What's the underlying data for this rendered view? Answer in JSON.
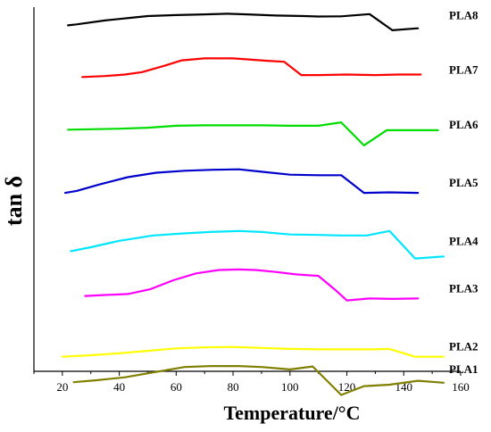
{
  "chart_data": {
    "type": "line",
    "title": "",
    "xlabel": "Temperature/°C",
    "ylabel": "tan δ",
    "xlim": [
      10,
      160
    ],
    "xticks": [
      20,
      40,
      60,
      80,
      100,
      120,
      140,
      160
    ],
    "y_ticks_shown": false,
    "grid": false,
    "legend": "inline-right",
    "series": [
      {
        "name": "PLA8",
        "color": "#000000",
        "baseline": 0.95,
        "x": [
          22,
          25,
          35,
          45,
          50,
          60,
          70,
          78,
          85,
          95,
          105,
          110,
          118,
          128,
          136,
          145
        ],
        "y": [
          0.0,
          0.1,
          0.5,
          0.8,
          0.95,
          1.05,
          1.12,
          1.18,
          1.12,
          1.0,
          0.95,
          0.9,
          0.92,
          1.15,
          -0.5,
          -0.3
        ]
      },
      {
        "name": "PLA7",
        "color": "#ff0000",
        "baseline": 0.8,
        "x": [
          27,
          35,
          42,
          48,
          56,
          62,
          70,
          80,
          85,
          92,
          98,
          104,
          110,
          120,
          130,
          138,
          146
        ],
        "y": [
          0.3,
          0.4,
          0.55,
          0.8,
          1.45,
          2.0,
          2.2,
          2.2,
          2.1,
          1.95,
          1.85,
          0.5,
          0.5,
          0.55,
          0.5,
          0.55,
          0.55
        ]
      },
      {
        "name": "PLA6",
        "color": "#00dd00",
        "baseline": 0.65,
        "x": [
          22,
          30,
          40,
          50,
          60,
          70,
          80,
          90,
          100,
          110,
          118,
          126,
          134,
          140,
          152
        ],
        "y": [
          0.5,
          0.55,
          0.6,
          0.7,
          0.9,
          0.95,
          0.95,
          0.95,
          0.9,
          0.9,
          1.25,
          -1.1,
          0.45,
          0.45,
          0.45
        ]
      },
      {
        "name": "PLA5",
        "color": "#0000cc",
        "baseline": 0.49,
        "x": [
          21,
          25,
          33,
          43,
          53,
          63,
          73,
          82,
          90,
          100,
          110,
          118,
          126,
          135,
          145
        ],
        "y": [
          0.0,
          0.2,
          0.85,
          1.6,
          2.05,
          2.25,
          2.35,
          2.4,
          2.15,
          1.85,
          1.8,
          1.8,
          0.0,
          0.05,
          0.0
        ]
      },
      {
        "name": "PLA4",
        "color": "#00e6ff",
        "baseline": 0.33,
        "x": [
          23,
          30,
          40,
          52,
          62,
          72,
          82,
          90,
          100,
          110,
          118,
          127,
          135,
          144,
          154
        ],
        "y": [
          0.0,
          0.4,
          1.05,
          1.6,
          1.8,
          1.95,
          2.05,
          1.95,
          1.7,
          1.65,
          1.6,
          1.6,
          2.05,
          -0.75,
          -0.55
        ]
      },
      {
        "name": "PLA3",
        "color": "#ff00ff",
        "baseline": 0.2,
        "x": [
          28,
          35,
          43,
          51,
          59,
          67,
          75,
          82,
          88,
          95,
          102,
          110,
          116,
          120,
          128,
          136,
          145
        ],
        "y": [
          0.25,
          0.35,
          0.45,
          0.95,
          1.85,
          2.55,
          2.9,
          2.95,
          2.9,
          2.7,
          2.45,
          2.3,
          0.85,
          -0.2,
          0.0,
          -0.05,
          0.0
        ]
      },
      {
        "name": "PLA2",
        "color": "#ffff00",
        "baseline": 0.04,
        "x": [
          20,
          30,
          40,
          50,
          60,
          70,
          80,
          90,
          100,
          110,
          120,
          130,
          135,
          144,
          154
        ],
        "y": [
          0.0,
          0.15,
          0.35,
          0.6,
          0.85,
          0.95,
          1.0,
          0.9,
          0.8,
          0.75,
          0.75,
          0.75,
          0.8,
          0.0,
          0.0
        ]
      },
      {
        "name": "PLA1",
        "color": "#808000",
        "baseline": -0.03,
        "x": [
          24,
          32,
          42,
          52,
          63,
          72,
          82,
          90,
          100,
          108,
          118,
          126,
          135,
          145,
          154
        ],
        "y": [
          0.0,
          0.2,
          0.5,
          1.0,
          1.55,
          1.65,
          1.65,
          1.55,
          1.3,
          1.6,
          -1.3,
          -0.4,
          -0.25,
          0.15,
          -0.05
        ]
      }
    ]
  }
}
